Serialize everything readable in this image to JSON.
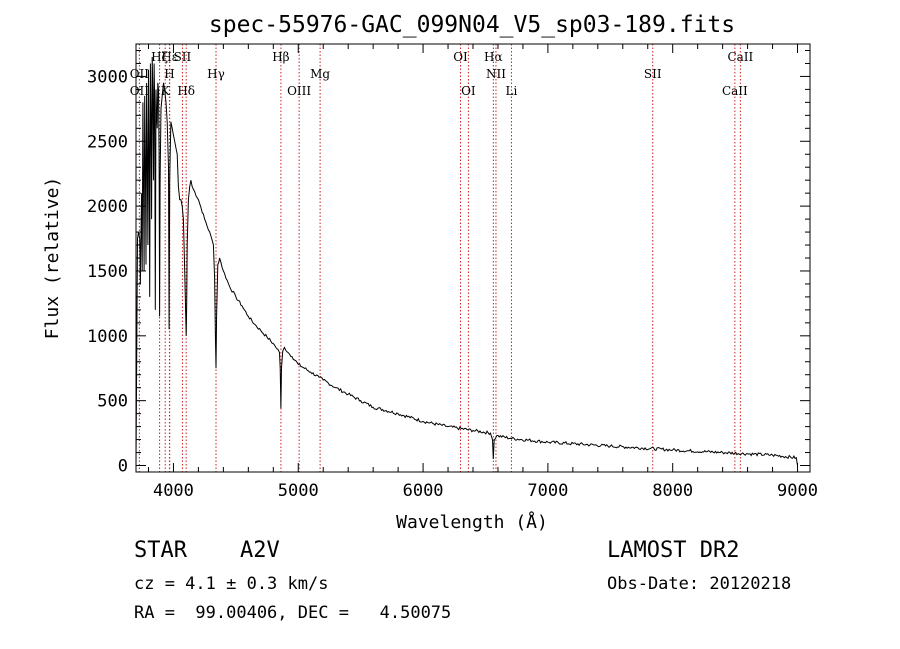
{
  "chart_data": {
    "type": "line",
    "title": "spec-55976-GAC_099N04_V5_sp03-189.fits",
    "xlabel": "Wavelength (Å)",
    "ylabel": "Flux (relative)",
    "xlim": [
      3700,
      9100
    ],
    "ylim": [
      -50,
      3250
    ],
    "xticks": [
      4000,
      5000,
      6000,
      7000,
      8000,
      9000
    ],
    "yticks": [
      0,
      500,
      1000,
      1500,
      2000,
      2500,
      3000
    ],
    "line_color": "#000000",
    "marker_color": "#cc2222",
    "series": [
      {
        "x": [
          3700,
          3712,
          3720,
          3730,
          3735,
          3740,
          3745,
          3750,
          3755,
          3760,
          3765,
          3770,
          3775,
          3780,
          3785,
          3790,
          3795,
          3800,
          3805,
          3810,
          3815,
          3820,
          3825,
          3830,
          3835,
          3840,
          3845,
          3850,
          3855,
          3860,
          3865,
          3870,
          3875,
          3880,
          3885,
          3889,
          3893,
          3900,
          3910,
          3920,
          3930,
          3940,
          3950,
          3960,
          3965,
          3970,
          3975,
          3980,
          3990,
          4000,
          4010,
          4020,
          4030,
          4040,
          4050,
          4060,
          4070,
          4080,
          4090,
          4095,
          4102,
          4106,
          4110,
          4120,
          4130,
          4140,
          4150,
          4200,
          4250,
          4300,
          4320,
          4330,
          4336,
          4341,
          4346,
          4355,
          4370,
          4400,
          4450,
          4500,
          4550,
          4600,
          4650,
          4700,
          4750,
          4800,
          4830,
          4850,
          4855,
          4861,
          4866,
          4875,
          4890,
          4920,
          4950,
          5000,
          5100,
          5167,
          5200,
          5300,
          5400,
          5500,
          5600,
          5800,
          6000,
          6200,
          6400,
          6540,
          6556,
          6563,
          6570,
          6590,
          6700,
          7000,
          7500,
          8000,
          8400,
          8600,
          8800,
          8990,
          9000
        ],
        "y": [
          0,
          1750,
          1800,
          1750,
          1400,
          1800,
          2100,
          1500,
          2800,
          2200,
          1500,
          2850,
          2300,
          1550,
          2950,
          2400,
          1700,
          3050,
          2500,
          1300,
          3100,
          2700,
          1900,
          3150,
          2900,
          2200,
          3100,
          2800,
          1200,
          2900,
          2700,
          2600,
          2950,
          2900,
          2400,
          1150,
          2200,
          2750,
          2850,
          2950,
          2900,
          2800,
          2650,
          2300,
          1050,
          2200,
          2450,
          2650,
          2600,
          2550,
          2500,
          2450,
          2400,
          2150,
          2050,
          2050,
          2000,
          1900,
          1500,
          1300,
          1000,
          1250,
          1700,
          2050,
          2150,
          2200,
          2150,
          2050,
          1900,
          1770,
          1700,
          1450,
          1000,
          750,
          1150,
          1550,
          1600,
          1500,
          1380,
          1300,
          1230,
          1150,
          1090,
          1040,
          990,
          940,
          900,
          870,
          750,
          440,
          750,
          880,
          910,
          870,
          840,
          780,
          720,
          680,
          660,
          600,
          550,
          500,
          450,
          400,
          340,
          300,
          270,
          250,
          200,
          50,
          200,
          230,
          210,
          180,
          150,
          120,
          100,
          90,
          80,
          60,
          0
        ],
        "noise_amplitude": 12
      }
    ],
    "line_markers": [
      {
        "label": "Hα",
        "x": 6563,
        "row": 0,
        "italic": false
      },
      {
        "label": "OI",
        "x": 6300,
        "row": 0,
        "italic": false
      },
      {
        "label": "CaII",
        "x": 8542,
        "row": 0,
        "italic": false
      },
      {
        "label": "Hβ",
        "x": 4861,
        "row": 0,
        "italic": false
      },
      {
        "label": "SII",
        "x": 4072,
        "row": 0,
        "italic": false
      },
      {
        "label": "Hε",
        "x": 3970,
        "row": 0,
        "italic": false
      },
      {
        "label": "Hζ",
        "x": 3889,
        "row": 0,
        "italic": false
      },
      {
        "label": "NII",
        "x": 6584,
        "row": 1,
        "italic": false
      },
      {
        "label": "SII",
        "x": 7840,
        "row": 1,
        "italic": false
      },
      {
        "label": "Mg",
        "x": 5175,
        "row": 1,
        "italic": false
      },
      {
        "label": "Hγ",
        "x": 4341,
        "row": 1,
        "italic": false
      },
      {
        "label": "H",
        "x": 3968,
        "row": 1,
        "italic": false
      },
      {
        "label": "OII",
        "x": 3727,
        "row": 1,
        "italic": false
      },
      {
        "label": "OI",
        "x": 6363,
        "row": 2,
        "italic": false
      },
      {
        "label": "Li",
        "x": 6708,
        "row": 2,
        "italic": false
      },
      {
        "label": "CaII",
        "x": 8498,
        "row": 2,
        "italic": false
      },
      {
        "label": "OIII",
        "x": 5007,
        "row": 2,
        "italic": false
      },
      {
        "label": "Hδ",
        "x": 4102,
        "row": 2,
        "italic": false
      },
      {
        "label": "K",
        "x": 3934,
        "row": 2,
        "italic": false
      },
      {
        "label": "OII",
        "x": 3727,
        "row": 2,
        "italic": false
      }
    ]
  },
  "info": {
    "class_label": "STAR",
    "subclass": "A2V",
    "survey": "LAMOST DR2",
    "cz": "cz = 4.1 ± 0.3 km/s",
    "obs_date": "Obs-Date: 20120218",
    "coords": "RA =  99.00406, DEC =   4.50075"
  }
}
